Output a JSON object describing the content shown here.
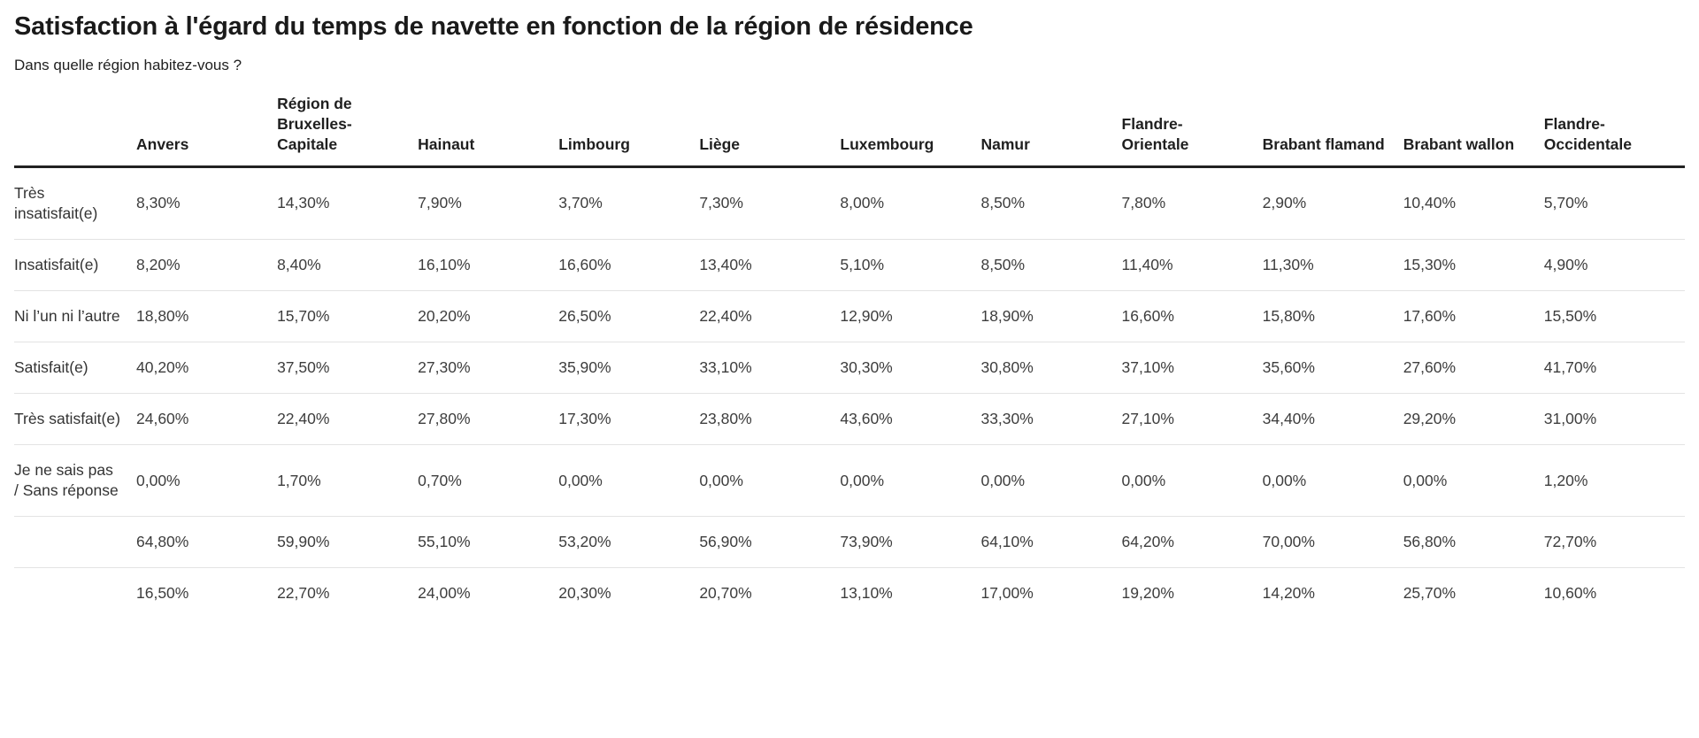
{
  "page": {
    "title": "Satisfaction à l'égard du temps de navette en fonction de la région de résidence",
    "subtitle": "Dans quelle région habitez-vous ?"
  },
  "table": {
    "columns": [
      "Anvers",
      "Région de Bruxelles-Capitale",
      "Hainaut",
      "Limbourg",
      "Liège",
      "Luxembourg",
      "Namur",
      "Flandre-Orientale",
      "Brabant flamand",
      "Brabant wallon",
      "Flandre-Occidentale"
    ],
    "rows": [
      {
        "label": "Très insatisfait(e)",
        "values": [
          "8,30%",
          "14,30%",
          "7,90%",
          "3,70%",
          "7,30%",
          "8,00%",
          "8,50%",
          "7,80%",
          "2,90%",
          "10,40%",
          "5,70%"
        ]
      },
      {
        "label": "Insatisfait(e)",
        "values": [
          "8,20%",
          "8,40%",
          "16,10%",
          "16,60%",
          "13,40%",
          "5,10%",
          "8,50%",
          "11,40%",
          "11,30%",
          "15,30%",
          "4,90%"
        ]
      },
      {
        "label": "Ni l’un ni l’autre",
        "values": [
          "18,80%",
          "15,70%",
          "20,20%",
          "26,50%",
          "22,40%",
          "12,90%",
          "18,90%",
          "16,60%",
          "15,80%",
          "17,60%",
          "15,50%"
        ]
      },
      {
        "label": "Satisfait(e)",
        "values": [
          "40,20%",
          "37,50%",
          "27,30%",
          "35,90%",
          "33,10%",
          "30,30%",
          "30,80%",
          "37,10%",
          "35,60%",
          "27,60%",
          "41,70%"
        ]
      },
      {
        "label": "Très satisfait(e)",
        "values": [
          "24,60%",
          "22,40%",
          "27,80%",
          "17,30%",
          "23,80%",
          "43,60%",
          "33,30%",
          "27,10%",
          "34,40%",
          "29,20%",
          "31,00%"
        ]
      },
      {
        "label": "Je ne sais pas / Sans réponse",
        "values": [
          "0,00%",
          "1,70%",
          "0,70%",
          "0,00%",
          "0,00%",
          "0,00%",
          "0,00%",
          "0,00%",
          "0,00%",
          "0,00%",
          "1,20%"
        ]
      },
      {
        "label": "",
        "values": [
          "64,80%",
          "59,90%",
          "55,10%",
          "53,20%",
          "56,90%",
          "73,90%",
          "64,10%",
          "64,20%",
          "70,00%",
          "56,80%",
          "72,70%"
        ]
      },
      {
        "label": "",
        "values": [
          "16,50%",
          "22,70%",
          "24,00%",
          "20,30%",
          "20,70%",
          "13,10%",
          "17,00%",
          "19,20%",
          "14,20%",
          "25,70%",
          "10,60%"
        ]
      }
    ]
  },
  "chart_data": {
    "type": "table",
    "title": "Satisfaction à l'égard du temps de navette en fonction de la région de résidence",
    "subtitle": "Dans quelle région habitez-vous ?",
    "categories": [
      "Anvers",
      "Région de Bruxelles-Capitale",
      "Hainaut",
      "Limbourg",
      "Liège",
      "Luxembourg",
      "Namur",
      "Flandre-Orientale",
      "Brabant flamand",
      "Brabant wallon",
      "Flandre-Occidentale"
    ],
    "unit": "%",
    "series": [
      {
        "name": "Très insatisfait(e)",
        "values": [
          8.3,
          14.3,
          7.9,
          3.7,
          7.3,
          8.0,
          8.5,
          7.8,
          2.9,
          10.4,
          5.7
        ]
      },
      {
        "name": "Insatisfait(e)",
        "values": [
          8.2,
          8.4,
          16.1,
          16.6,
          13.4,
          5.1,
          8.5,
          11.4,
          11.3,
          15.3,
          4.9
        ]
      },
      {
        "name": "Ni l’un ni l’autre",
        "values": [
          18.8,
          15.7,
          20.2,
          26.5,
          22.4,
          12.9,
          18.9,
          16.6,
          15.8,
          17.6,
          15.5
        ]
      },
      {
        "name": "Satisfait(e)",
        "values": [
          40.2,
          37.5,
          27.3,
          35.9,
          33.1,
          30.3,
          30.8,
          37.1,
          35.6,
          27.6,
          41.7
        ]
      },
      {
        "name": "Très satisfait(e)",
        "values": [
          24.6,
          22.4,
          27.8,
          17.3,
          23.8,
          43.6,
          33.3,
          27.1,
          34.4,
          29.2,
          31.0
        ]
      },
      {
        "name": "Je ne sais pas / Sans réponse",
        "values": [
          0.0,
          1.7,
          0.7,
          0.0,
          0.0,
          0.0,
          0.0,
          0.0,
          0.0,
          0.0,
          1.2
        ]
      },
      {
        "name": "",
        "values": [
          64.8,
          59.9,
          55.1,
          53.2,
          56.9,
          73.9,
          64.1,
          64.2,
          70.0,
          56.8,
          72.7
        ]
      },
      {
        "name": "",
        "values": [
          16.5,
          22.7,
          24.0,
          20.3,
          20.7,
          13.1,
          17.0,
          19.2,
          14.2,
          25.7,
          10.6
        ]
      }
    ]
  },
  "colors": {
    "background": "#ffffff",
    "title_text": "#1a1a1a",
    "body_text": "#3d3d3d",
    "header_rule": "#222222",
    "row_rule": "#e3e3e3"
  }
}
